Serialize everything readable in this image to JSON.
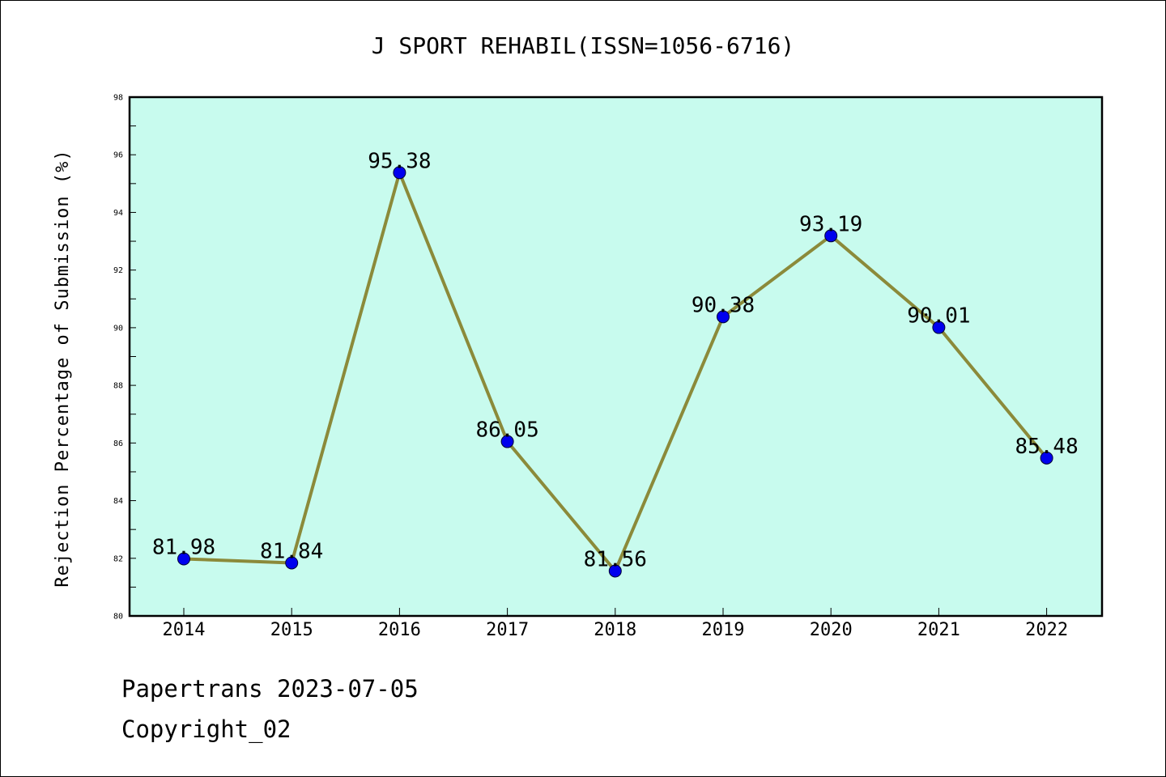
{
  "chart_data": {
    "type": "line",
    "title": "J SPORT REHABIL(ISSN=1056-6716)",
    "xlabel": "",
    "ylabel": "Rejection Percentage of Submission (%)",
    "categories": [
      "2014",
      "2015",
      "2016",
      "2017",
      "2018",
      "2019",
      "2020",
      "2021",
      "2022"
    ],
    "series": [
      {
        "values": [
          81.98,
          81.84,
          95.38,
          86.05,
          81.56,
          90.38,
          93.19,
          90.01,
          85.48
        ],
        "data_labels": [
          "81.98",
          "81.84",
          "95.38",
          "86.05",
          "81.56",
          "90.38",
          "93.19",
          "90.01",
          "85.48"
        ]
      }
    ],
    "ylim": [
      80,
      98
    ],
    "y_major_ticks": [
      80,
      82,
      84,
      86,
      88,
      90,
      92,
      94,
      96,
      98
    ],
    "grid": false,
    "colors": {
      "plot_background": "#c8fbee",
      "line": "#8b8a3a",
      "marker": "#0000ee"
    }
  },
  "footer": {
    "line1": "Papertrans 2023-07-05",
    "line2": "Copyright_02"
  }
}
